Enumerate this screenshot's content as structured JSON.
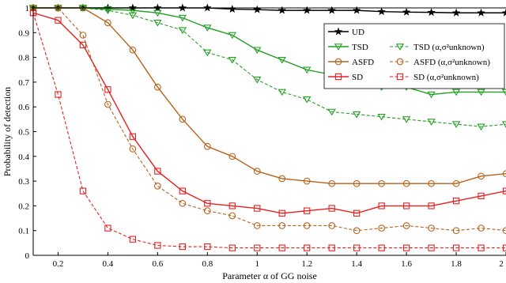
{
  "chart_data": {
    "type": "line",
    "xlabel": "Parameter α of GG noise",
    "ylabel": "Probability of detection",
    "xlim": [
      0.1,
      2
    ],
    "ylim": [
      0,
      1
    ],
    "x_ticks": [
      "0.2",
      "0.4",
      "0.6",
      "0.8",
      "1",
      "1.2",
      "1.4",
      "1.6",
      "1.8",
      "2"
    ],
    "y_ticks": [
      "0",
      "0.1",
      "0.2",
      "0.3",
      "0.4",
      "0.5",
      "0.6",
      "0.7",
      "0.8",
      "0.9",
      "1"
    ],
    "grid": false,
    "legend_position": "top-right",
    "x": [
      0.1,
      0.2,
      0.3,
      0.4,
      0.5,
      0.6,
      0.7,
      0.8,
      0.9,
      1.0,
      1.1,
      1.2,
      1.3,
      1.4,
      1.5,
      1.6,
      1.7,
      1.8,
      1.9,
      2.0
    ],
    "series": [
      {
        "name": "UD",
        "color": "#000000",
        "marker": "star",
        "dashed": false,
        "values": [
          1.0,
          1.0,
          1.0,
          1.0,
          1.0,
          1.0,
          1.0,
          1.0,
          0.995,
          0.993,
          0.99,
          0.99,
          0.99,
          0.99,
          0.985,
          0.983,
          0.982,
          0.98,
          0.98,
          0.98
        ]
      },
      {
        "name": "TSD",
        "color": "#22a022",
        "marker": "triangle",
        "dashed": false,
        "values": [
          1.0,
          1.0,
          1.0,
          0.995,
          0.99,
          0.98,
          0.96,
          0.92,
          0.89,
          0.83,
          0.79,
          0.75,
          0.73,
          0.71,
          0.68,
          0.68,
          0.65,
          0.66,
          0.66,
          0.66
        ]
      },
      {
        "name": "ASFD",
        "color": "#b8621c",
        "marker": "circle",
        "dashed": false,
        "values": [
          1.0,
          1.0,
          1.0,
          0.94,
          0.83,
          0.68,
          0.55,
          0.44,
          0.4,
          0.34,
          0.31,
          0.3,
          0.29,
          0.29,
          0.29,
          0.29,
          0.29,
          0.29,
          0.32,
          0.33
        ]
      },
      {
        "name": "SD",
        "color": "#e82020",
        "marker": "square",
        "dashed": false,
        "values": [
          0.98,
          0.95,
          0.85,
          0.67,
          0.48,
          0.34,
          0.26,
          0.21,
          0.2,
          0.19,
          0.17,
          0.18,
          0.19,
          0.17,
          0.2,
          0.2,
          0.2,
          0.22,
          0.24,
          0.26
        ]
      },
      {
        "name": "TSD (α,σ²unknown)",
        "color": "#22a022",
        "marker": "triangle",
        "dashed": true,
        "values": [
          1.0,
          1.0,
          1.0,
          0.99,
          0.97,
          0.94,
          0.91,
          0.82,
          0.79,
          0.71,
          0.66,
          0.63,
          0.58,
          0.57,
          0.56,
          0.55,
          0.54,
          0.53,
          0.52,
          0.53
        ]
      },
      {
        "name": "ASFD (α,σ²unknown)",
        "color": "#b8621c",
        "marker": "circle",
        "dashed": true,
        "values": [
          1.0,
          1.0,
          0.89,
          0.61,
          0.43,
          0.28,
          0.21,
          0.18,
          0.16,
          0.12,
          0.12,
          0.12,
          0.12,
          0.1,
          0.11,
          0.12,
          0.11,
          0.1,
          0.11,
          0.1
        ]
      },
      {
        "name": "SD (α,σ²unknown)",
        "color": "#e82020",
        "marker": "square",
        "dashed": true,
        "values": [
          0.98,
          0.65,
          0.26,
          0.11,
          0.065,
          0.04,
          0.035,
          0.035,
          0.03,
          0.03,
          0.03,
          0.03,
          0.03,
          0.03,
          0.03,
          0.03,
          0.03,
          0.03,
          0.03,
          0.03
        ]
      }
    ]
  }
}
